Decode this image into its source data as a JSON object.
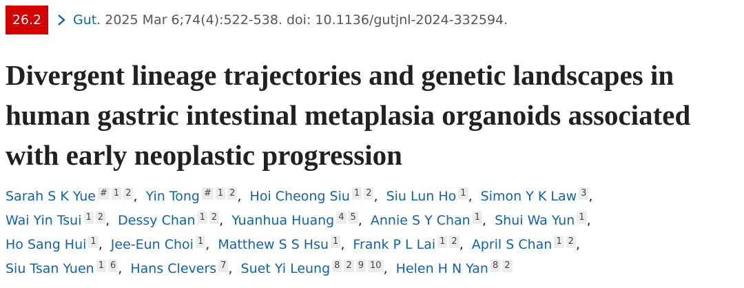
{
  "citation": {
    "badge": "26.2",
    "journal": "Gut.",
    "details": "2025 Mar 6;74(4):522-538. doi: 10.1136/gutjnl-2024-332594."
  },
  "title": "Divergent lineage trajectories and genetic landscapes in human gastric intestinal metaplasia organoids associated with early neoplastic progression",
  "authors": {
    "separator": ",",
    "list": [
      {
        "name": "Sarah S K Yue",
        "affiliations": [
          "#",
          "1",
          "2"
        ]
      },
      {
        "name": "Yin Tong",
        "affiliations": [
          "#",
          "1",
          "2"
        ]
      },
      {
        "name": "Hoi Cheong Siu",
        "affiliations": [
          "1",
          "2"
        ]
      },
      {
        "name": "Siu Lun Ho",
        "affiliations": [
          "1"
        ]
      },
      {
        "name": "Simon Y K Law",
        "affiliations": [
          "3"
        ]
      },
      {
        "name": "Wai Yin Tsui",
        "affiliations": [
          "1",
          "2"
        ]
      },
      {
        "name": "Dessy Chan",
        "affiliations": [
          "1",
          "2"
        ]
      },
      {
        "name": "Yuanhua Huang",
        "affiliations": [
          "4",
          "5"
        ]
      },
      {
        "name": "Annie S Y Chan",
        "affiliations": [
          "1"
        ]
      },
      {
        "name": "Shui Wa Yun",
        "affiliations": [
          "1"
        ]
      },
      {
        "name": "Ho Sang Hui",
        "affiliations": [
          "1"
        ]
      },
      {
        "name": "Jee-Eun Choi",
        "affiliations": [
          "1"
        ]
      },
      {
        "name": "Matthew S S Hsu",
        "affiliations": [
          "1"
        ]
      },
      {
        "name": "Frank P L Lai",
        "affiliations": [
          "1",
          "2"
        ]
      },
      {
        "name": "April S Chan",
        "affiliations": [
          "1",
          "2"
        ]
      },
      {
        "name": "Siu Tsan Yuen",
        "affiliations": [
          "1",
          "6"
        ]
      },
      {
        "name": "Hans Clevers",
        "affiliations": [
          "7"
        ]
      },
      {
        "name": "Suet Yi Leung",
        "affiliations": [
          "8",
          "2",
          "9",
          "10"
        ]
      },
      {
        "name": "Helen H N Yan",
        "affiliations": [
          "8",
          "2"
        ]
      }
    ]
  }
}
